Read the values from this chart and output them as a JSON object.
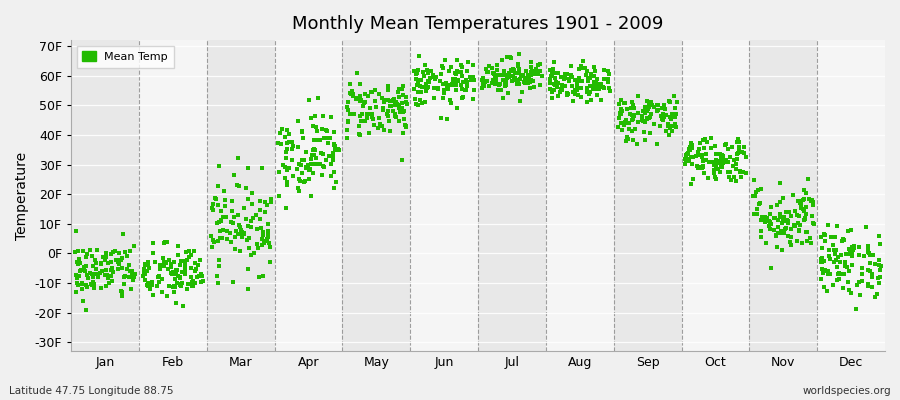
{
  "title": "Monthly Mean Temperatures 1901 - 2009",
  "ylabel": "Temperature",
  "xlabel": "",
  "background_color": "#f0f0f0",
  "plot_bg_color": "#f0f0f0",
  "stripe_color_a": "#e8e8e8",
  "stripe_color_b": "#f5f5f5",
  "point_color": "#22bb00",
  "point_size": 5,
  "legend_label": "Mean Temp",
  "watermark": "worldspecies.org",
  "footer_left": "Latitude 47.75 Longitude 88.75",
  "ytick_labels": [
    "-30F",
    "-20F",
    "-10F",
    "0F",
    "10F",
    "20F",
    "30F",
    "40F",
    "50F",
    "60F",
    "70F"
  ],
  "ytick_values": [
    -30,
    -20,
    -10,
    0,
    10,
    20,
    30,
    40,
    50,
    60,
    70
  ],
  "ylim": [
    -33,
    72
  ],
  "months": [
    "Jan",
    "Feb",
    "Mar",
    "Apr",
    "May",
    "Jun",
    "Jul",
    "Aug",
    "Sep",
    "Oct",
    "Nov",
    "Dec"
  ],
  "monthly_mean_temps": [
    -6,
    -7,
    10,
    34,
    49,
    57,
    60,
    57,
    46,
    32,
    12,
    -3
  ],
  "monthly_spread": [
    5,
    5,
    8,
    7,
    5,
    4,
    3,
    3,
    4,
    4,
    6,
    6
  ],
  "n_years": 109,
  "seed": 42,
  "xlim": [
    0,
    12
  ]
}
